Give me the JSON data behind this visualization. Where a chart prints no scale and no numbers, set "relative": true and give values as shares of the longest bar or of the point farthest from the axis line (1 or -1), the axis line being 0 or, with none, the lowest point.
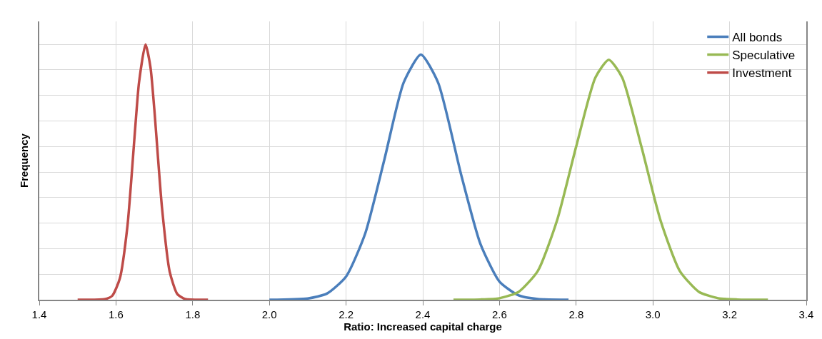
{
  "chart_data": {
    "type": "line",
    "relative": true,
    "xlabel": "Ratio: Increased capital charge",
    "ylabel": "Frequency",
    "xlim": [
      1.4,
      3.4
    ],
    "xticks": [
      {
        "value": 1.4,
        "label": "1.4"
      },
      {
        "value": 1.6,
        "label": "1.6"
      },
      {
        "value": 1.8,
        "label": "1.8"
      },
      {
        "value": 2.0,
        "label": "2.0"
      },
      {
        "value": 2.2,
        "label": "2.2"
      },
      {
        "value": 2.4,
        "label": "2.4"
      },
      {
        "value": 2.6,
        "label": "2.6"
      },
      {
        "value": 2.8,
        "label": "2.8"
      },
      {
        "value": 3.0,
        "label": "3.0"
      },
      {
        "value": 3.2,
        "label": "3.2"
      },
      {
        "value": 3.4,
        "label": "3.4"
      }
    ],
    "grid": true,
    "legend": "top right",
    "line_style": "solid",
    "marker": "none",
    "series": [
      {
        "name": "All bonds",
        "color": "#4a7ebb",
        "x": [
          2.0,
          2.1,
          2.15,
          2.2,
          2.25,
          2.3,
          2.35,
          2.395,
          2.44,
          2.5,
          2.55,
          2.6,
          2.65,
          2.7,
          2.78
        ],
        "values": [
          0,
          0.005,
          0.024,
          0.091,
          0.26,
          0.55,
          0.85,
          0.96,
          0.85,
          0.49,
          0.22,
          0.071,
          0.017,
          0.003,
          0
        ]
      },
      {
        "name": "Speculative",
        "color": "#98b954",
        "x": [
          2.48,
          2.55,
          2.6,
          2.65,
          2.7,
          2.75,
          2.8,
          2.85,
          2.885,
          2.92,
          2.97,
          3.02,
          3.07,
          3.12,
          3.17,
          3.22,
          3.3
        ],
        "values": [
          0,
          0.001,
          0.006,
          0.031,
          0.113,
          0.31,
          0.6,
          0.87,
          0.94,
          0.87,
          0.6,
          0.31,
          0.113,
          0.031,
          0.006,
          0.001,
          0
        ]
      },
      {
        "name": "Investment",
        "color": "#be4b48",
        "x": [
          1.5,
          1.57,
          1.59,
          1.61,
          1.63,
          1.65,
          1.66,
          1.677,
          1.69,
          1.7,
          1.72,
          1.74,
          1.76,
          1.78,
          1.84
        ],
        "values": [
          0,
          0.002,
          0.015,
          0.083,
          0.29,
          0.67,
          0.85,
          1,
          0.91,
          0.745,
          0.36,
          0.11,
          0.022,
          0.003,
          0
        ]
      }
    ]
  }
}
